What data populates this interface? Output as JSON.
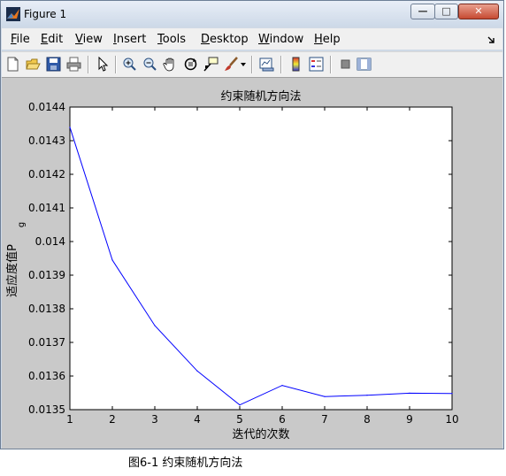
{
  "window": {
    "title": "Figure 1",
    "buttons": {
      "minimize": "—",
      "maximize": "□",
      "close": "✕"
    }
  },
  "menu": {
    "items": [
      {
        "label": "File",
        "key": "F",
        "rest": "ile"
      },
      {
        "label": "Edit",
        "key": "E",
        "rest": "dit"
      },
      {
        "label": "View",
        "key": "V",
        "rest": "iew"
      },
      {
        "label": "Insert",
        "key": "I",
        "rest": "nsert"
      },
      {
        "label": "Tools",
        "key": "T",
        "rest": "ools"
      },
      {
        "label": "Desktop",
        "key": "D",
        "rest": "esktop"
      },
      {
        "label": "Window",
        "key": "W",
        "rest": "indow"
      },
      {
        "label": "Help",
        "key": "H",
        "rest": "elp"
      }
    ]
  },
  "toolbar": {
    "icons": [
      "new-figure-icon",
      "open-file-icon",
      "save-icon",
      "print-icon",
      "edit-plot-arrow-icon",
      "zoom-in-icon",
      "zoom-out-icon",
      "pan-hand-icon",
      "rotate-3d-icon",
      "data-cursor-icon",
      "brush-icon",
      "link-plot-icon",
      "colorbar-icon",
      "legend-icon",
      "hide-plot-tools-icon",
      "show-plot-tools-icon"
    ]
  },
  "colors": {
    "line": "#0000ff",
    "axes_bg": "#ffffff",
    "figure_bg": "#c9c9c9"
  },
  "chart_data": {
    "type": "line",
    "title": "约束随机方向法",
    "xlabel": "迭代的次数",
    "ylabel": "适应度值P",
    "ylabel_subscript": "g",
    "xlim": [
      1,
      10
    ],
    "ylim": [
      0.0135,
      0.0144
    ],
    "xticks": [
      "1",
      "2",
      "3",
      "4",
      "5",
      "6",
      "7",
      "8",
      "9",
      "10"
    ],
    "yticks": [
      "0.0135",
      "0.0136",
      "0.0137",
      "0.0138",
      "0.0139",
      "0.014",
      "0.0141",
      "0.0142",
      "0.0143",
      "0.0144"
    ],
    "series": [
      {
        "x": [
          1,
          2,
          3,
          4,
          5,
          6,
          7,
          8,
          9,
          10
        ],
        "y": [
          0.01434,
          0.013945,
          0.01375,
          0.013615,
          0.013514,
          0.013572,
          0.013539,
          0.013543,
          0.013549,
          0.013548
        ]
      }
    ]
  },
  "caption": "图6-1  约束随机方向法"
}
